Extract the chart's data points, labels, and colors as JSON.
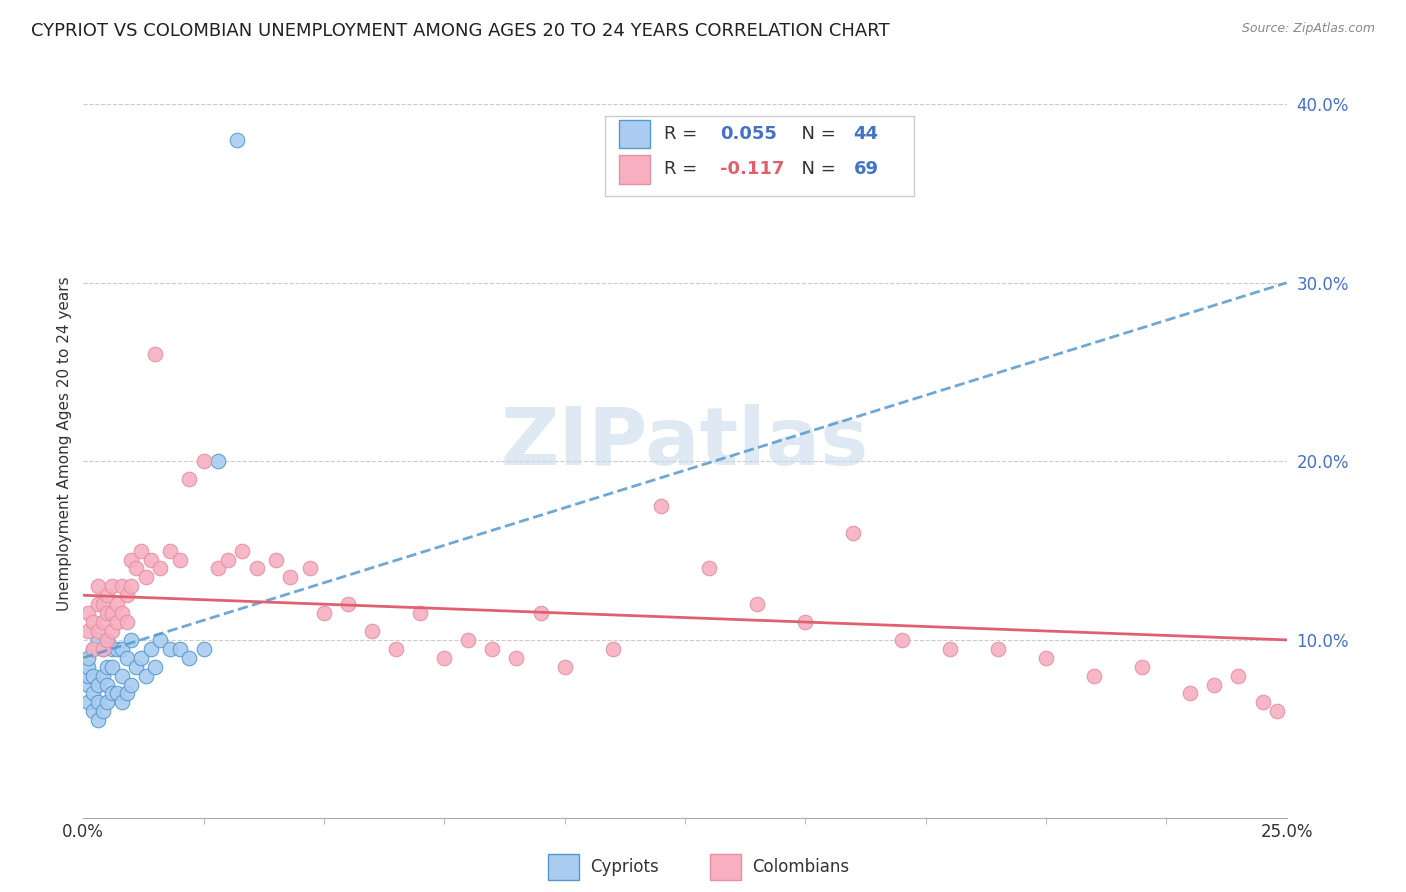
{
  "title": "CYPRIOT VS COLOMBIAN UNEMPLOYMENT AMONG AGES 20 TO 24 YEARS CORRELATION CHART",
  "source": "Source: ZipAtlas.com",
  "ylabel": "Unemployment Among Ages 20 to 24 years",
  "legend_cypriot": "Cypriots",
  "legend_colombian": "Colombians",
  "R_cypriot": 0.055,
  "N_cypriot": 44,
  "R_colombian": -0.117,
  "N_colombian": 69,
  "cypriot_color": "#aaccf0",
  "colombian_color": "#f8b0c0",
  "cypriot_line_color": "#5599cc",
  "colombian_line_color": "#e06070",
  "watermark": "ZIPatlas",
  "watermark_color_zip": "#b8cfe8",
  "watermark_color_atlas": "#c8d8e8",
  "x_min": 0.0,
  "x_max": 0.25,
  "y_min": 0.0,
  "y_max": 0.42,
  "cypriot_x": [
    0.001,
    0.001,
    0.001,
    0.001,
    0.001,
    0.002,
    0.002,
    0.002,
    0.002,
    0.003,
    0.003,
    0.003,
    0.003,
    0.004,
    0.004,
    0.004,
    0.005,
    0.005,
    0.005,
    0.005,
    0.006,
    0.006,
    0.006,
    0.007,
    0.007,
    0.008,
    0.008,
    0.008,
    0.009,
    0.009,
    0.01,
    0.01,
    0.011,
    0.012,
    0.013,
    0.014,
    0.015,
    0.016,
    0.018,
    0.02,
    0.022,
    0.025,
    0.028,
    0.032
  ],
  "cypriot_y": [
    0.065,
    0.075,
    0.08,
    0.085,
    0.09,
    0.06,
    0.07,
    0.08,
    0.095,
    0.055,
    0.065,
    0.075,
    0.1,
    0.06,
    0.08,
    0.095,
    0.065,
    0.075,
    0.085,
    0.1,
    0.07,
    0.085,
    0.095,
    0.07,
    0.095,
    0.065,
    0.08,
    0.095,
    0.07,
    0.09,
    0.075,
    0.1,
    0.085,
    0.09,
    0.08,
    0.095,
    0.085,
    0.1,
    0.095,
    0.095,
    0.09,
    0.095,
    0.2,
    0.38
  ],
  "colombian_x": [
    0.001,
    0.001,
    0.002,
    0.002,
    0.003,
    0.003,
    0.003,
    0.004,
    0.004,
    0.004,
    0.005,
    0.005,
    0.005,
    0.006,
    0.006,
    0.006,
    0.007,
    0.007,
    0.008,
    0.008,
    0.009,
    0.009,
    0.01,
    0.01,
    0.011,
    0.012,
    0.013,
    0.014,
    0.015,
    0.016,
    0.018,
    0.02,
    0.022,
    0.025,
    0.028,
    0.03,
    0.033,
    0.036,
    0.04,
    0.043,
    0.047,
    0.05,
    0.055,
    0.06,
    0.065,
    0.07,
    0.075,
    0.08,
    0.085,
    0.09,
    0.095,
    0.1,
    0.11,
    0.12,
    0.13,
    0.14,
    0.15,
    0.16,
    0.17,
    0.18,
    0.19,
    0.2,
    0.21,
    0.22,
    0.23,
    0.235,
    0.24,
    0.245,
    0.248
  ],
  "colombian_y": [
    0.105,
    0.115,
    0.095,
    0.11,
    0.12,
    0.105,
    0.13,
    0.11,
    0.12,
    0.095,
    0.115,
    0.1,
    0.125,
    0.115,
    0.13,
    0.105,
    0.12,
    0.11,
    0.115,
    0.13,
    0.125,
    0.11,
    0.13,
    0.145,
    0.14,
    0.15,
    0.135,
    0.145,
    0.26,
    0.14,
    0.15,
    0.145,
    0.19,
    0.2,
    0.14,
    0.145,
    0.15,
    0.14,
    0.145,
    0.135,
    0.14,
    0.115,
    0.12,
    0.105,
    0.095,
    0.115,
    0.09,
    0.1,
    0.095,
    0.09,
    0.115,
    0.085,
    0.095,
    0.175,
    0.14,
    0.12,
    0.11,
    0.16,
    0.1,
    0.095,
    0.095,
    0.09,
    0.08,
    0.085,
    0.07,
    0.075,
    0.08,
    0.065,
    0.06
  ]
}
